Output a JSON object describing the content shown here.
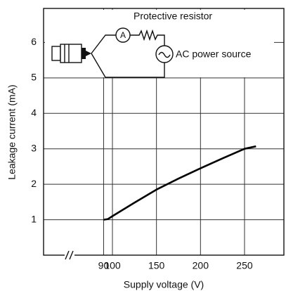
{
  "chart_data": {
    "type": "line",
    "x_label": "Supply voltage (V)",
    "y_label": "Leakage current (mA)",
    "annotations": [
      "Protective resistor",
      "AC power source",
      "A"
    ],
    "x": [
      90,
      95,
      100,
      125,
      150,
      175,
      200,
      225,
      250,
      263
    ],
    "series": [
      {
        "name": "Leakage current",
        "color": "#000000",
        "values": [
          1.0,
          1.02,
          1.1,
          1.48,
          1.85,
          2.16,
          2.45,
          2.73,
          3.0,
          3.07
        ]
      }
    ],
    "xlim": [
      21.8,
      294.7
    ],
    "xticks": [
      90,
      100,
      150,
      200,
      250
    ],
    "ylim": [
      0,
      6.96
    ],
    "yticks": [
      1,
      2,
      3,
      4,
      5,
      6
    ],
    "grid": true
  }
}
